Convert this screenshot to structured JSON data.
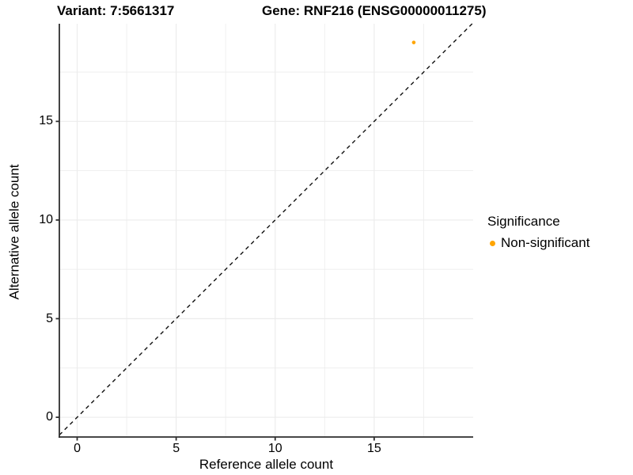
{
  "chart_data": {
    "type": "scatter",
    "titles": [
      "Variant: 7:5661317",
      "Gene: RNF216 (ENSG00000011275)"
    ],
    "xlabel": "Reference allele count",
    "ylabel": "Alternative allele count",
    "xlim": [
      -0.9,
      20.0
    ],
    "ylim": [
      -1.0,
      19.95
    ],
    "x_major_ticks": [
      0,
      5,
      10,
      15
    ],
    "y_major_ticks": [
      0,
      5,
      10,
      15
    ],
    "x_minor_gridlines": [
      2.5,
      7.5,
      12.5,
      17.5
    ],
    "y_minor_gridlines": [
      2.5,
      7.5,
      12.5,
      17.5
    ],
    "grid": true,
    "series": [
      {
        "name": "Non-significant",
        "color": "#FFA500",
        "points": [
          {
            "x": 17,
            "y": 19
          }
        ]
      }
    ],
    "reference_line": {
      "kind": "identity",
      "equation": "y = x",
      "style": "dashed",
      "color": "#111111"
    },
    "legend": {
      "title": "Significance",
      "position": "right",
      "entries": [
        {
          "label": "Non-significant",
          "color": "#FFA500"
        }
      ]
    },
    "colors": {
      "grid": "#ececec",
      "axis": "#2e2e2e",
      "text": "#000000",
      "background": "#ffffff"
    }
  }
}
